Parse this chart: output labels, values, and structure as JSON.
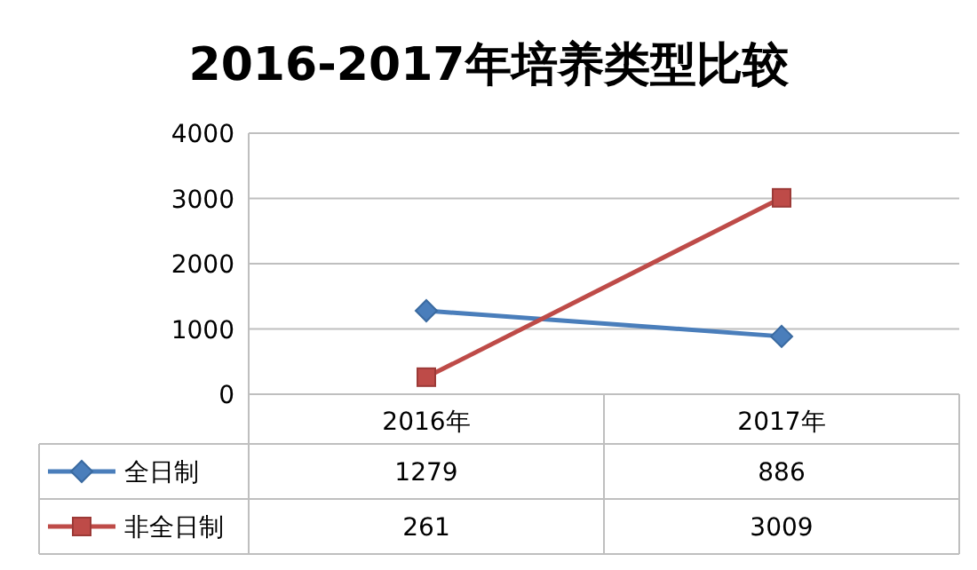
{
  "chart_data": {
    "type": "line",
    "title": "2016-2017年培养类型比较",
    "categories": [
      "2016年",
      "2017年"
    ],
    "series": [
      {
        "name": "全日制",
        "color": "#4a7ebb",
        "values": [
          1279,
          886
        ],
        "marker": "diamond"
      },
      {
        "name": "非全日制",
        "color": "#be4b48",
        "values": [
          261,
          3009
        ],
        "marker": "square"
      }
    ],
    "ylim": [
      0,
      4000
    ],
    "yticks": [
      0,
      1000,
      2000,
      3000,
      4000
    ],
    "grid": "y",
    "legend": "bottom",
    "data_labels": true,
    "line_style": "solid"
  }
}
